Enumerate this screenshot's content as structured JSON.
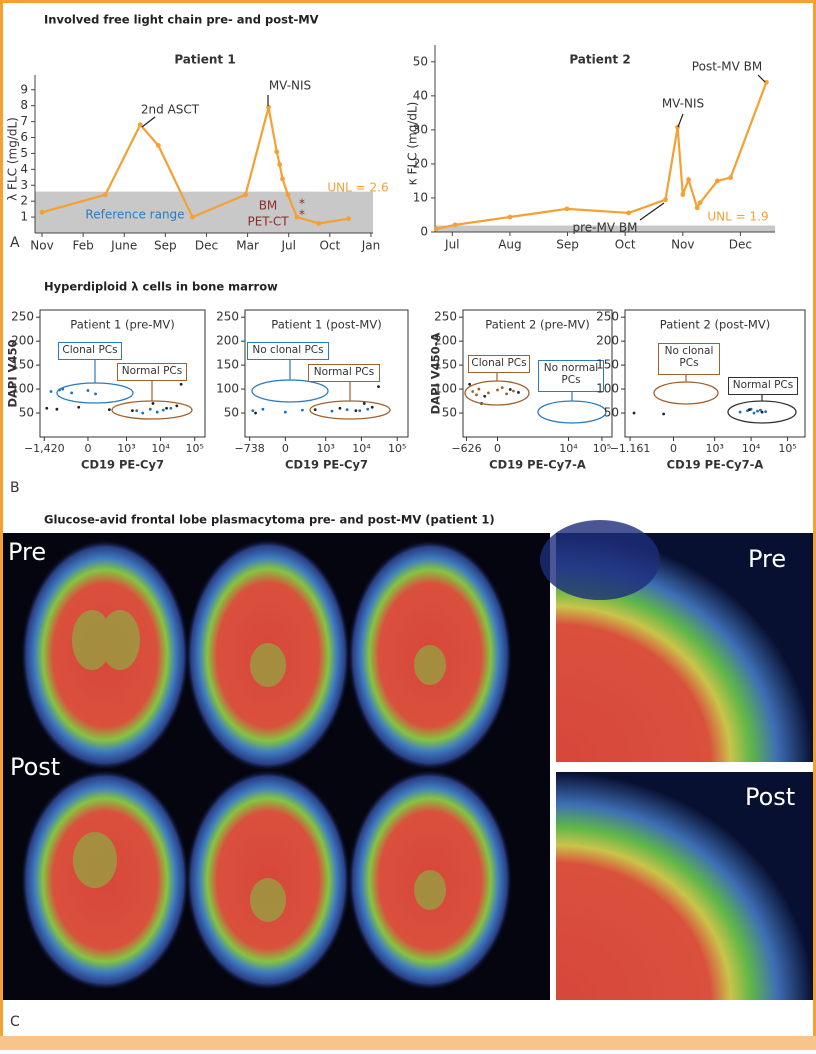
{
  "figure": {
    "sections": [
      {
        "title": "Involved free light chain pre- and post-MV",
        "label": "A"
      },
      {
        "title": "Hyperdiploid λ cells in bone marrow",
        "label": "B"
      },
      {
        "title": "Glucose-avid frontal lobe plasmacytoma pre- and post-MV (patient 1)",
        "label": "C"
      }
    ],
    "image_labels": [
      "Pre",
      "Post",
      "Pre",
      "Post"
    ]
  },
  "chart_data": [
    {
      "type": "line",
      "title": "Patient 1",
      "ylabel": "λ FLC (mg/dL)",
      "color": "#f5a033",
      "xticks": [
        {
          "value": 0,
          "label": "Nov"
        },
        {
          "value": 1,
          "label": "Feb"
        },
        {
          "value": 2,
          "label": "June"
        },
        {
          "value": 3,
          "label": "Sep"
        },
        {
          "value": 4,
          "label": "Dec"
        },
        {
          "value": 5,
          "label": "Mar"
        },
        {
          "value": 6,
          "label": "Jul"
        },
        {
          "value": 7,
          "label": "Oct"
        },
        {
          "value": 8,
          "label": "Jan"
        }
      ],
      "xlim": [
        -0.17,
        8.05
      ],
      "ylim": [
        0,
        9.3
      ],
      "yticks": [
        1,
        2,
        3,
        4,
        5,
        6,
        7,
        8,
        9
      ],
      "x": [
        0,
        1.54,
        2.39,
        2.83,
        3.66,
        4.95,
        5.51,
        5.71,
        5.78,
        5.85,
        5.98,
        6.2,
        6.73,
        7.46
      ],
      "values": [
        1.3,
        2.4,
        6.8,
        5.5,
        1.0,
        2.4,
        7.9,
        5.1,
        4.3,
        3.4,
        2.4,
        1.0,
        0.6,
        0.9
      ],
      "band": {
        "value": 2.6,
        "label": "UNL = 2.6"
      },
      "annotations": [
        "2nd ASCT",
        "MV-NIS",
        "Reference range",
        "BM",
        "PET-CT",
        "*",
        "*"
      ]
    },
    {
      "type": "line",
      "title": "Patient 2",
      "ylabel": "κ FLC (mg/dL)",
      "color": "#f5a033",
      "xticks": [
        {
          "value": 0,
          "label": "Jul"
        },
        {
          "value": 1,
          "label": "Aug"
        },
        {
          "value": 2,
          "label": "Sep"
        },
        {
          "value": 3,
          "label": "Oct"
        },
        {
          "value": 4,
          "label": "Nov"
        },
        {
          "value": 5,
          "label": "Dec"
        }
      ],
      "xlim": [
        -0.3,
        5.6
      ],
      "ylim": [
        0,
        52
      ],
      "yticks": [
        0,
        10,
        20,
        30,
        40,
        50
      ],
      "x": [
        -0.28,
        0.05,
        1.0,
        1.99,
        3.06,
        3.7,
        3.91,
        4.0,
        4.1,
        4.25,
        4.3,
        4.6,
        4.83,
        5.45
      ],
      "values": [
        0.9,
        2.1,
        4.4,
        6.8,
        5.6,
        9.5,
        30.8,
        11,
        15.4,
        7.1,
        8.6,
        15,
        16,
        44
      ],
      "band": {
        "value": 1.9,
        "label": "UNL = 1.9"
      },
      "annotations": [
        "MV-NIS",
        "Post-MV BM",
        "pre-MV BM"
      ]
    },
    {
      "type": "scatter",
      "title": "Patient 1 (pre-MV)",
      "xlabel": "CD19 PE-Cy7",
      "ylabel": "DAPI V450",
      "xlim": [
        -1900,
        200000
      ],
      "ylim": [
        0,
        265
      ],
      "xticks": [
        {
          "value": -1420,
          "label": "−1,420"
        },
        0,
        {
          "value": 1000,
          "label": "10³"
        },
        {
          "value": 10000,
          "label": "10⁴"
        },
        {
          "value": 100000,
          "label": "10⁵"
        }
      ],
      "yticks": [
        50,
        100,
        150,
        200,
        250
      ],
      "series": [
        {
          "color": "#1f6fb5",
          "x": [
            -900,
            -500,
            -200,
            0,
            80,
            -400,
            2000,
            5000,
            8000,
            12000,
            20000,
            3000
          ],
          "values": [
            95,
            98,
            92,
            97,
            90,
            100,
            55,
            58,
            52,
            56,
            60,
            50
          ]
        },
        {
          "color": "#222222",
          "x": [
            -1200,
            -600,
            -100,
            300,
            1500,
            6000,
            15000,
            40000,
            30000
          ],
          "values": [
            60,
            58,
            62,
            57,
            55,
            70,
            60,
            110,
            65
          ]
        }
      ],
      "annotations": [
        "Clonal PCs",
        "Normal PCs"
      ]
    },
    {
      "type": "scatter",
      "title": "Patient 1 (post-MV)",
      "xlabel": "CD19 PE-Cy7",
      "xlim": [
        -1000,
        200000
      ],
      "ylim": [
        0,
        265
      ],
      "xticks": [
        {
          "value": -738,
          "label": "−738"
        },
        0,
        {
          "value": 1000,
          "label": "10³"
        },
        {
          "value": 10000,
          "label": "10⁴"
        },
        {
          "value": 100000,
          "label": "10⁵"
        }
      ],
      "yticks": [
        50,
        100,
        150,
        200,
        250
      ],
      "series": [
        {
          "color": "#1f6fb5",
          "x": [
            -600,
            -300,
            0,
            200,
            1500,
            4000,
            9000,
            15000
          ],
          "values": [
            55,
            58,
            52,
            56,
            54,
            57,
            55,
            58
          ]
        },
        {
          "color": "#222222",
          "x": [
            -500,
            500,
            2500,
            7000,
            20000,
            12000,
            30000
          ],
          "values": [
            50,
            57,
            60,
            55,
            62,
            70,
            105
          ]
        }
      ],
      "annotations": [
        "No clonal PCs",
        "Normal PCs"
      ]
    },
    {
      "type": "scatter",
      "title": "Patient 2 (pre-MV)",
      "xlabel": "CD19 PE-Cy7-A",
      "ylabel": "DAPI V450-A",
      "xlim": [
        -800,
        200000
      ],
      "ylim": [
        0,
        265
      ],
      "xticks": [
        {
          "value": -626,
          "label": "−626"
        },
        0,
        {
          "value": 10000,
          "label": "10⁴"
        },
        {
          "value": 100000,
          "label": "10⁵"
        }
      ],
      "yticks": [
        50,
        100,
        150,
        200,
        250
      ],
      "series": [
        {
          "color": "#a0612c",
          "x": [
            -400,
            -250,
            -100,
            0,
            100,
            200,
            -300,
            50
          ],
          "values": [
            95,
            100,
            92,
            98,
            90,
            96,
            88,
            103
          ]
        },
        {
          "color": "#222222",
          "x": [
            -500,
            -150,
            150,
            300,
            -200
          ],
          "values": [
            110,
            85,
            99,
            93,
            70
          ]
        }
      ],
      "annotations": [
        "Clonal PCs",
        "No normal PCs"
      ]
    },
    {
      "type": "scatter",
      "title": "Patient 2 (post-MV)",
      "xlabel": "CD19 PE-Cy7-A",
      "xlim": [
        -1600,
        300000
      ],
      "ylim": [
        0,
        265
      ],
      "xticks": [
        {
          "value": -1161,
          "label": "−1.161"
        },
        0,
        {
          "value": 1000,
          "label": "10³"
        },
        {
          "value": 10000,
          "label": "10⁴"
        },
        {
          "value": 100000,
          "label": "10⁵"
        }
      ],
      "yticks": [
        50,
        100,
        150,
        200,
        250
      ],
      "series": [
        {
          "color": "#1f6fb5",
          "x": [
            5000,
            8000,
            12000,
            18000,
            25000,
            10000,
            15000
          ],
          "values": [
            52,
            55,
            50,
            56,
            53,
            58,
            54
          ]
        },
        {
          "color": "#222222",
          "x": [
            -900,
            -100,
            9000,
            20000
          ],
          "values": [
            50,
            48,
            57,
            52
          ]
        }
      ],
      "annotations": [
        "No clonal PCs",
        "Normal PCs"
      ]
    }
  ]
}
